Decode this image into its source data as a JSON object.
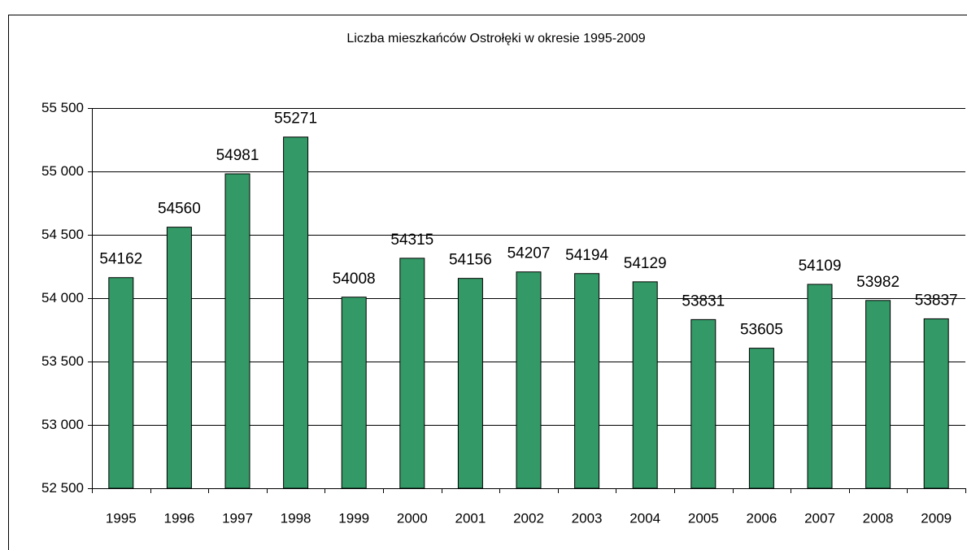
{
  "chart_data": {
    "type": "bar",
    "title": "Liczba mieszkańców Ostrołęki w okresie 1995-2009",
    "categories": [
      "1995",
      "1996",
      "1997",
      "1998",
      "1999",
      "2000",
      "2001",
      "2002",
      "2003",
      "2004",
      "2005",
      "2006",
      "2007",
      "2008",
      "2009"
    ],
    "values": [
      54162,
      54560,
      54981,
      55271,
      54008,
      54315,
      54156,
      54207,
      54194,
      54129,
      53831,
      53605,
      54109,
      53982,
      53837
    ],
    "color": "#339966",
    "ylim": [
      52500,
      55500
    ],
    "yticks": [
      {
        "value": 52500,
        "label": "52 500"
      },
      {
        "value": 53000,
        "label": "53 000"
      },
      {
        "value": 53500,
        "label": "53 500"
      },
      {
        "value": 54000,
        "label": "54 000"
      },
      {
        "value": 54500,
        "label": "54 500"
      },
      {
        "value": 55000,
        "label": "55 000"
      },
      {
        "value": 55500,
        "label": "55 500"
      }
    ],
    "grid": true
  }
}
